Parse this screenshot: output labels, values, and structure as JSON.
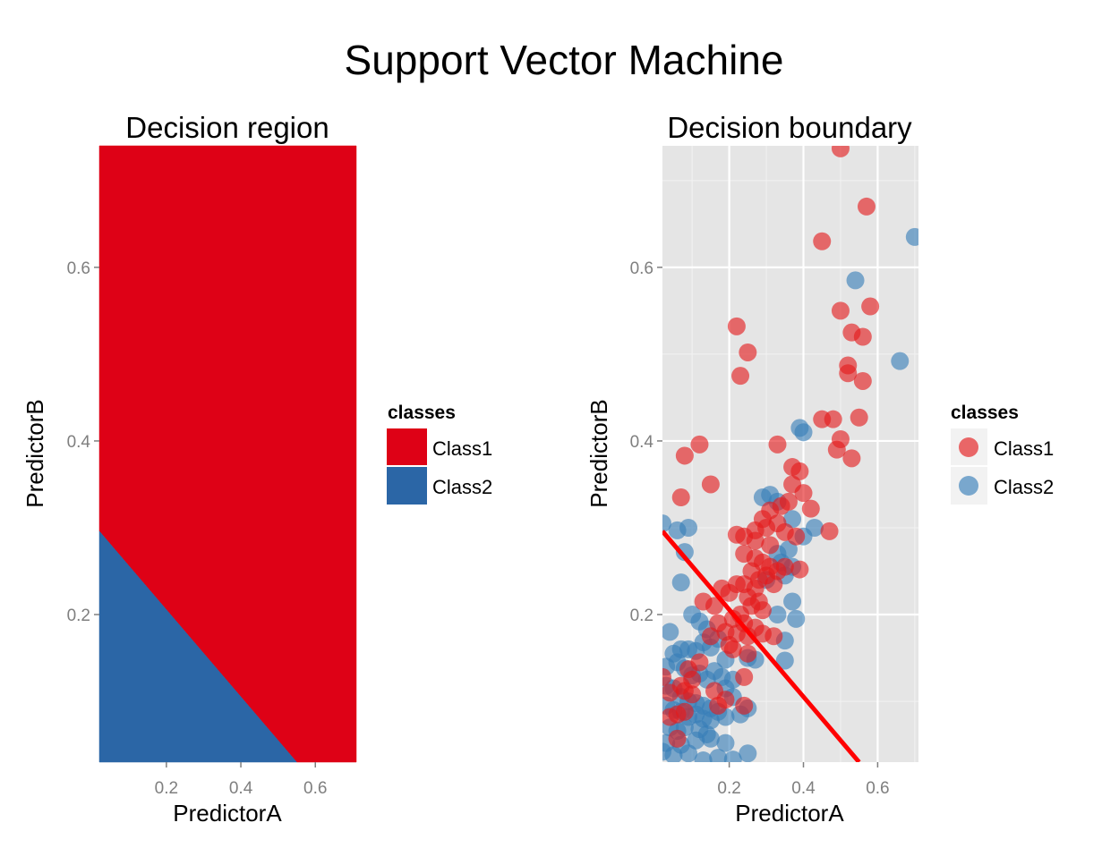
{
  "title": "Support Vector Machine",
  "colors": {
    "class1": "#E41A1C",
    "class2": "#377EB8",
    "region_class1": "#DE0116",
    "region_class2": "#2B66A6",
    "panel_bg": "#E5E5E5",
    "boundary": "#FF0000"
  },
  "chart_data": [
    {
      "type": "area",
      "title": "Decision region",
      "xlabel": "PredictorA",
      "ylabel": "PredictorB",
      "xlim": [
        0.02,
        0.71
      ],
      "ylim": [
        0.03,
        0.74
      ],
      "xticks": [
        0.2,
        0.4,
        0.6
      ],
      "xtick_labels": [
        "0.2",
        "0.4",
        "0.6"
      ],
      "yticks": [
        0.2,
        0.4,
        0.6
      ],
      "ytick_labels": [
        "0.2",
        "0.4",
        "0.6"
      ],
      "grid": false,
      "regions": [
        {
          "name": "Class1",
          "color": "#DE0116",
          "polygon": [
            [
              0.02,
              0.296
            ],
            [
              0.02,
              0.74
            ],
            [
              0.71,
              0.74
            ],
            [
              0.71,
              0.03
            ],
            [
              0.55,
              0.03
            ]
          ]
        },
        {
          "name": "Class2",
          "color": "#2B66A6",
          "polygon": [
            [
              0.02,
              0.03
            ],
            [
              0.02,
              0.296
            ],
            [
              0.55,
              0.03
            ]
          ]
        }
      ],
      "legend": {
        "title": "classes",
        "placement": "right",
        "entries": [
          {
            "label": "Class1",
            "color": "#DE0116"
          },
          {
            "label": "Class2",
            "color": "#2B66A6"
          }
        ]
      }
    },
    {
      "type": "scatter",
      "title": "Decision boundary",
      "xlabel": "PredictorA",
      "ylabel": "PredictorB",
      "xlim": [
        0.02,
        0.71
      ],
      "ylim": [
        0.03,
        0.74
      ],
      "xticks": [
        0.2,
        0.4,
        0.6
      ],
      "xtick_labels": [
        "0.2",
        "0.4",
        "0.6"
      ],
      "yticks": [
        0.2,
        0.4,
        0.6
      ],
      "ytick_labels": [
        "0.2",
        "0.4",
        "0.6"
      ],
      "grid": true,
      "boundary_line": [
        [
          0.02,
          0.296
        ],
        [
          0.55,
          0.03
        ]
      ],
      "legend": {
        "title": "classes",
        "placement": "right",
        "entries": [
          {
            "label": "Class1",
            "color": "#E41A1C"
          },
          {
            "label": "Class2",
            "color": "#377EB8"
          }
        ]
      },
      "series": [
        {
          "name": "Class1",
          "color": "#E41A1C",
          "points": [
            [
              0.5,
              0.737
            ],
            [
              0.57,
              0.67
            ],
            [
              0.45,
              0.63
            ],
            [
              0.5,
              0.55
            ],
            [
              0.58,
              0.555
            ],
            [
              0.53,
              0.525
            ],
            [
              0.56,
              0.52
            ],
            [
              0.22,
              0.532
            ],
            [
              0.25,
              0.502
            ],
            [
              0.23,
              0.475
            ],
            [
              0.52,
              0.487
            ],
            [
              0.52,
              0.478
            ],
            [
              0.56,
              0.469
            ],
            [
              0.45,
              0.425
            ],
            [
              0.48,
              0.425
            ],
            [
              0.55,
              0.427
            ],
            [
              0.5,
              0.402
            ],
            [
              0.49,
              0.39
            ],
            [
              0.53,
              0.38
            ],
            [
              0.08,
              0.383
            ],
            [
              0.12,
              0.396
            ],
            [
              0.33,
              0.396
            ],
            [
              0.07,
              0.335
            ],
            [
              0.15,
              0.35
            ],
            [
              0.37,
              0.37
            ],
            [
              0.39,
              0.365
            ],
            [
              0.37,
              0.35
            ],
            [
              0.4,
              0.34
            ],
            [
              0.42,
              0.322
            ],
            [
              0.36,
              0.33
            ],
            [
              0.34,
              0.325
            ],
            [
              0.31,
              0.32
            ],
            [
              0.29,
              0.31
            ],
            [
              0.33,
              0.305
            ],
            [
              0.3,
              0.3
            ],
            [
              0.27,
              0.297
            ],
            [
              0.22,
              0.292
            ],
            [
              0.24,
              0.29
            ],
            [
              0.27,
              0.285
            ],
            [
              0.31,
              0.28
            ],
            [
              0.35,
              0.295
            ],
            [
              0.38,
              0.29
            ],
            [
              0.47,
              0.296
            ],
            [
              0.24,
              0.27
            ],
            [
              0.27,
              0.265
            ],
            [
              0.29,
              0.26
            ],
            [
              0.31,
              0.255
            ],
            [
              0.33,
              0.25
            ],
            [
              0.26,
              0.25
            ],
            [
              0.28,
              0.24
            ],
            [
              0.3,
              0.245
            ],
            [
              0.32,
              0.235
            ],
            [
              0.35,
              0.255
            ],
            [
              0.39,
              0.252
            ],
            [
              0.24,
              0.235
            ],
            [
              0.27,
              0.23
            ],
            [
              0.22,
              0.235
            ],
            [
              0.18,
              0.23
            ],
            [
              0.2,
              0.225
            ],
            [
              0.25,
              0.22
            ],
            [
              0.28,
              0.215
            ],
            [
              0.26,
              0.21
            ],
            [
              0.29,
              0.205
            ],
            [
              0.23,
              0.2
            ],
            [
              0.21,
              0.195
            ],
            [
              0.24,
              0.19
            ],
            [
              0.27,
              0.185
            ],
            [
              0.29,
              0.178
            ],
            [
              0.25,
              0.175
            ],
            [
              0.22,
              0.178
            ],
            [
              0.19,
              0.18
            ],
            [
              0.15,
              0.175
            ],
            [
              0.17,
              0.19
            ],
            [
              0.13,
              0.215
            ],
            [
              0.16,
              0.21
            ],
            [
              0.32,
              0.175
            ],
            [
              0.25,
              0.155
            ],
            [
              0.21,
              0.16
            ],
            [
              0.12,
              0.145
            ],
            [
              0.09,
              0.137
            ],
            [
              0.1,
              0.125
            ],
            [
              0.07,
              0.118
            ],
            [
              0.08,
              0.112
            ],
            [
              0.1,
              0.108
            ],
            [
              0.02,
              0.128
            ],
            [
              0.04,
              0.11
            ],
            [
              0.16,
              0.112
            ],
            [
              0.19,
              0.102
            ],
            [
              0.24,
              0.128
            ],
            [
              0.04,
              0.082
            ],
            [
              0.06,
              0.085
            ],
            [
              0.08,
              0.088
            ],
            [
              0.17,
              0.095
            ],
            [
              0.24,
              0.095
            ],
            [
              0.06,
              0.057
            ],
            [
              0.2,
              0.165
            ]
          ]
        },
        {
          "name": "Class2",
          "color": "#377EB8",
          "points": [
            [
              0.7,
              0.635
            ],
            [
              0.54,
              0.585
            ],
            [
              0.66,
              0.492
            ],
            [
              0.39,
              0.415
            ],
            [
              0.4,
              0.41
            ],
            [
              0.02,
              0.305
            ],
            [
              0.06,
              0.297
            ],
            [
              0.09,
              0.3
            ],
            [
              0.08,
              0.272
            ],
            [
              0.29,
              0.335
            ],
            [
              0.31,
              0.338
            ],
            [
              0.33,
              0.33
            ],
            [
              0.37,
              0.31
            ],
            [
              0.43,
              0.3
            ],
            [
              0.4,
              0.29
            ],
            [
              0.36,
              0.275
            ],
            [
              0.33,
              0.27
            ],
            [
              0.34,
              0.26
            ],
            [
              0.37,
              0.255
            ],
            [
              0.35,
              0.245
            ],
            [
              0.3,
              0.24
            ],
            [
              0.37,
              0.215
            ],
            [
              0.33,
              0.2
            ],
            [
              0.38,
              0.195
            ],
            [
              0.07,
              0.237
            ],
            [
              0.1,
              0.2
            ],
            [
              0.12,
              0.192
            ],
            [
              0.14,
              0.183
            ],
            [
              0.04,
              0.18
            ],
            [
              0.05,
              0.155
            ],
            [
              0.07,
              0.16
            ],
            [
              0.09,
              0.16
            ],
            [
              0.11,
              0.158
            ],
            [
              0.13,
              0.168
            ],
            [
              0.15,
              0.162
            ],
            [
              0.17,
              0.172
            ],
            [
              0.19,
              0.148
            ],
            [
              0.03,
              0.14
            ],
            [
              0.06,
              0.145
            ],
            [
              0.08,
              0.138
            ],
            [
              0.1,
              0.13
            ],
            [
              0.12,
              0.132
            ],
            [
              0.14,
              0.125
            ],
            [
              0.16,
              0.135
            ],
            [
              0.18,
              0.128
            ],
            [
              0.21,
              0.125
            ],
            [
              0.25,
              0.15
            ],
            [
              0.27,
              0.148
            ],
            [
              0.35,
              0.17
            ],
            [
              0.35,
              0.147
            ],
            [
              0.03,
              0.118
            ],
            [
              0.05,
              0.115
            ],
            [
              0.07,
              0.105
            ],
            [
              0.09,
              0.1
            ],
            [
              0.11,
              0.098
            ],
            [
              0.13,
              0.095
            ],
            [
              0.15,
              0.092
            ],
            [
              0.19,
              0.115
            ],
            [
              0.21,
              0.105
            ],
            [
              0.03,
              0.095
            ],
            [
              0.05,
              0.09
            ],
            [
              0.07,
              0.088
            ],
            [
              0.09,
              0.082
            ],
            [
              0.11,
              0.085
            ],
            [
              0.13,
              0.08
            ],
            [
              0.15,
              0.078
            ],
            [
              0.17,
              0.088
            ],
            [
              0.19,
              0.082
            ],
            [
              0.23,
              0.085
            ],
            [
              0.25,
              0.092
            ],
            [
              0.04,
              0.07
            ],
            [
              0.06,
              0.066
            ],
            [
              0.08,
              0.07
            ],
            [
              0.12,
              0.068
            ],
            [
              0.14,
              0.062
            ],
            [
              0.03,
              0.052
            ],
            [
              0.07,
              0.05
            ],
            [
              0.11,
              0.055
            ],
            [
              0.15,
              0.057
            ],
            [
              0.19,
              0.052
            ],
            [
              0.02,
              0.042
            ],
            [
              0.05,
              0.038
            ],
            [
              0.09,
              0.04
            ],
            [
              0.17,
              0.035
            ],
            [
              0.21,
              0.033
            ],
            [
              0.13,
              0.032
            ],
            [
              0.25,
              0.04
            ]
          ]
        }
      ]
    }
  ]
}
